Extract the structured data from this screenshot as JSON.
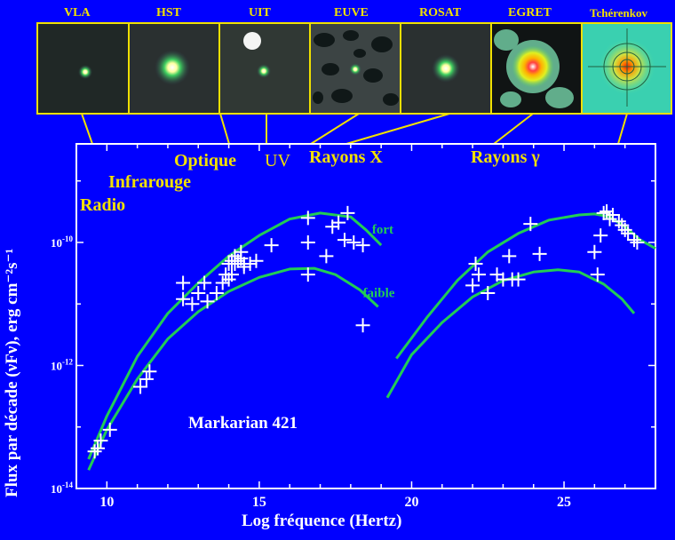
{
  "telescopes": [
    "VLA",
    "HST",
    "UIT",
    "EUVE",
    "ROSAT",
    "EGRET",
    "Tchérenkov"
  ],
  "bands": {
    "radio": "Radio",
    "infrared": "Infrarouge",
    "optical": "Optique",
    "uv": "UV",
    "xray": "Rayons X",
    "gamma": "Rayons γ"
  },
  "colors": {
    "background": "#0000ff",
    "axes": "#ffffff",
    "curves": "#22cc55",
    "labels": "#f2e000",
    "points": "#ffffff"
  },
  "chart_data": {
    "type": "scatter",
    "title": "Markarian 421",
    "xlabel": "Log fréquence (Hertz)",
    "ylabel": "Flux par décade (νFν), erg cm⁻²s⁻¹",
    "xlim": [
      9.0,
      28.0
    ],
    "ylim": [
      1e-14,
      4e-09
    ],
    "y_scale": "log",
    "x_ticks": [
      10,
      15,
      20,
      25
    ],
    "y_ticks": [
      {
        "value": 1e-14,
        "base": "10",
        "exp": "-14"
      },
      {
        "value": 1e-12,
        "base": "10",
        "exp": "-12"
      },
      {
        "value": 1e-10,
        "base": "10",
        "exp": "-10"
      }
    ],
    "series": [
      {
        "name": "fort",
        "kind": "curve",
        "x": [
          9.4,
          10.0,
          11.0,
          12.0,
          13.0,
          14.0,
          15.0,
          16.0,
          17.0,
          18.0,
          18.5,
          19.0
        ],
        "y": [
          3e-14,
          1.5e-13,
          1.4e-12,
          7e-12,
          2.2e-11,
          6e-11,
          1.3e-10,
          2.4e-10,
          3e-10,
          2.6e-10,
          1.6e-10,
          9e-11
        ]
      },
      {
        "name": "faible",
        "kind": "curve",
        "x": [
          9.4,
          10.0,
          11.0,
          12.0,
          13.0,
          14.0,
          15.0,
          16.0,
          16.8,
          17.5,
          18.3,
          18.9
        ],
        "y": [
          2e-14,
          9e-14,
          6e-13,
          2.7e-12,
          7.5e-12,
          1.6e-11,
          2.7e-11,
          3.7e-11,
          3.8e-11,
          3e-11,
          1.7e-11,
          9e-12
        ]
      },
      {
        "name": "fort",
        "kind": "curve",
        "x": [
          19.5,
          20.5,
          21.5,
          22.5,
          23.5,
          24.5,
          25.5,
          26.0,
          26.5,
          27.0,
          27.5,
          28.0
        ],
        "y": [
          1.3e-12,
          6e-12,
          2.4e-11,
          7e-11,
          1.4e-10,
          2.3e-10,
          2.8e-10,
          2.9e-10,
          2.6e-10,
          1.8e-10,
          1.1e-10,
          8e-11
        ]
      },
      {
        "name": "faible",
        "kind": "curve",
        "x": [
          19.2,
          20.0,
          21.0,
          22.0,
          23.0,
          24.0,
          24.8,
          25.5,
          26.3,
          26.9,
          27.3
        ],
        "y": [
          3e-13,
          1.5e-12,
          5e-12,
          1.3e-11,
          2.4e-11,
          3.3e-11,
          3.6e-11,
          3.3e-11,
          2.1e-11,
          1.2e-11,
          7e-12
        ]
      },
      {
        "name": "",
        "kind": "points",
        "x": [
          9.6,
          9.7,
          9.8,
          10.1,
          11.1,
          11.3,
          11.4,
          12.5,
          12.5,
          12.8,
          13.0,
          13.2,
          13.3,
          13.6,
          13.8,
          13.9,
          14.0,
          14.0,
          14.1,
          14.1,
          14.2,
          14.2,
          14.3,
          14.4,
          14.4,
          14.5,
          14.5,
          14.7,
          14.9,
          15.4,
          16.6,
          16.6,
          16.6,
          17.2,
          17.4,
          17.6,
          17.8,
          17.9,
          18.1,
          18.4,
          18.4
        ],
        "y": [
          4e-14,
          4.5e-14,
          6e-14,
          9e-14,
          4.5e-13,
          6e-13,
          8e-13,
          2.2e-11,
          1.2e-11,
          1e-11,
          1.5e-11,
          2.2e-11,
          1.1e-11,
          1.5e-11,
          2.2e-11,
          3e-11,
          4.5e-11,
          2.5e-11,
          5e-11,
          3e-11,
          4.5e-11,
          6e-11,
          5e-11,
          7e-11,
          5.5e-11,
          4e-11,
          4.5e-11,
          4.5e-11,
          5e-11,
          9e-11,
          2.5e-10,
          1e-10,
          3e-11,
          6e-11,
          1.8e-10,
          2.1e-10,
          1.1e-10,
          3e-10,
          1e-10,
          9e-11,
          4.5e-12
        ]
      },
      {
        "name": "",
        "kind": "points",
        "x": [
          22.0,
          22.1,
          22.2,
          22.5,
          22.8,
          23.0,
          23.2,
          23.3,
          23.5,
          23.9,
          24.2,
          26.0,
          26.1,
          26.3,
          26.4,
          26.5,
          26.6,
          26.8,
          26.9,
          27.0,
          27.1,
          27.3,
          27.4,
          26.2
        ],
        "y": [
          2e-11,
          4.5e-11,
          3e-11,
          1.5e-11,
          3e-11,
          2.5e-11,
          6e-11,
          2.5e-11,
          2.5e-11,
          2e-10,
          6.5e-11,
          7e-11,
          3e-11,
          3e-10,
          3.2e-10,
          2.4e-10,
          2.8e-10,
          2.2e-10,
          1.9e-10,
          1.6e-10,
          1.4e-10,
          1.1e-10,
          1e-10,
          1.3e-10
        ]
      }
    ],
    "annotations": [
      "fort",
      "faible",
      "Markarian 421"
    ],
    "grid": false,
    "legend": "none"
  }
}
